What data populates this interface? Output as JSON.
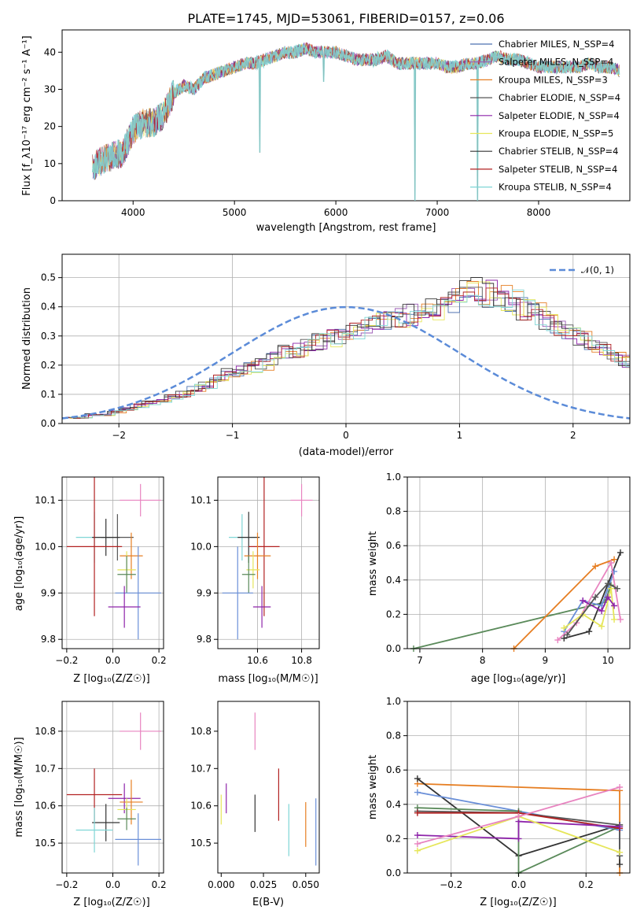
{
  "title": "PLATE=1745, MJD=53061, FIBERID=0157, z=0.06",
  "colors": {
    "Chabrier MILES": "#4c72b0",
    "Salpeter MILES": "#9b59b6",
    "Kroupa MILES": "#e67e22",
    "Chabrier ELODIE": "#555555",
    "Salpeter ELODIE": "#8e24aa",
    "Kroupa ELODIE": "#e6e65a",
    "Chabrier STELIB": "#333333",
    "Salpeter STELIB": "#b22222",
    "Kroupa STELIB": "#7fd6d6",
    "model_blue": "#6a8fd8",
    "model_green": "#5a8a5a",
    "model_pink": "#e884c0",
    "normal_curve": "#5b8bd8"
  },
  "panels": {
    "spectrum": {
      "xlabel": "wavelength [Angstrom, rest frame]",
      "ylabel": "Flux [f_λ10⁻¹⁷ erg cm⁻² s⁻¹ A⁻¹]",
      "xticks": [
        "4000",
        "5000",
        "6000",
        "7000",
        "8000"
      ],
      "yticks": [
        "0",
        "10",
        "20",
        "30",
        "40"
      ],
      "legend": [
        "Chabrier MILES, N_SSP=4",
        "Salpeter MILES, N_SSP=4",
        "Kroupa MILES, N_SSP=3",
        "Chabrier ELODIE, N_SSP=4",
        "Salpeter ELODIE, N_SSP=4",
        "Kroupa ELODIE, N_SSP=5",
        "Chabrier STELIB, N_SSP=4",
        "Salpeter STELIB, N_SSP=4",
        "Kroupa STELIB, N_SSP=4"
      ]
    },
    "residuals": {
      "xlabel": "(data-model)/error",
      "ylabel": "Normed distribution",
      "xticks": [
        "−2",
        "−1",
        "0",
        "1",
        "2"
      ],
      "yticks": [
        "0.0",
        "0.1",
        "0.2",
        "0.3",
        "0.4",
        "0.5"
      ],
      "legend": "𝒩(0, 1)"
    },
    "age_vs_z": {
      "xlabel": "Z [log₁₀(Z/Z☉)]",
      "ylabel": "age  [log₁₀(age/yr)]",
      "xticks": [
        "−0.2",
        "0.0",
        "0.2"
      ],
      "yticks": [
        "9.8",
        "9.9",
        "10.0",
        "10.1"
      ]
    },
    "age_vs_mass": {
      "xlabel": "mass [log₁₀(M/M☉)]",
      "xticks": [
        "10.6",
        "10.8"
      ],
      "yticks": [
        "9.8",
        "9.9",
        "10.0",
        "10.1"
      ]
    },
    "mw_vs_age": {
      "xlabel": "age  [log₁₀(age/yr)]",
      "ylabel": "mass weight",
      "xticks": [
        "7",
        "8",
        "9",
        "10"
      ],
      "yticks": [
        "0.0",
        "0.2",
        "0.4",
        "0.6",
        "0.8",
        "1.0"
      ]
    },
    "mass_vs_z": {
      "xlabel": "Z [log₁₀(Z/Z☉)]",
      "ylabel": "mass [log₁₀(M/M☉)]",
      "xticks": [
        "−0.2",
        "0.0",
        "0.2"
      ],
      "yticks": [
        "10.5",
        "10.6",
        "10.7",
        "10.8"
      ]
    },
    "mass_vs_ebv": {
      "xlabel": "E(B-V)",
      "xticks": [
        "0.000",
        "0.025",
        "0.050"
      ],
      "yticks": [
        "10.5",
        "10.6",
        "10.7",
        "10.8"
      ]
    },
    "mw_vs_z": {
      "xlabel": "Z [log₁₀(Z/Z☉)]",
      "ylabel": "mass weight",
      "xticks": [
        "−0.2",
        "0.0",
        "0.2"
      ],
      "yticks": [
        "0.0",
        "0.2",
        "0.4",
        "0.6",
        "0.8",
        "1.0"
      ]
    }
  },
  "chart_data": [
    {
      "type": "line",
      "title": "PLATE=1745, MJD=53061, FIBERID=0157, z=0.06",
      "xlabel": "wavelength [Angstrom, rest frame]",
      "ylabel": "Flux [f_λ10⁻¹⁷ erg cm⁻² s⁻¹ A⁻¹]",
      "xlim": [
        3300,
        8900
      ],
      "ylim": [
        0,
        46
      ],
      "grid": false,
      "legend_position": "upper right",
      "continuum": {
        "x": [
          3600,
          3700,
          3800,
          3900,
          4000,
          4100,
          4200,
          4300,
          4400,
          4500,
          4600,
          4700,
          4800,
          4900,
          5000,
          5100,
          5200,
          5300,
          5400,
          5500,
          5600,
          5700,
          5800,
          5900,
          6000,
          6100,
          6200,
          6300,
          6400,
          6500,
          6600,
          6700,
          6800,
          6900,
          7000,
          7100,
          7200,
          7300,
          7400,
          7500,
          7600,
          7700,
          7800,
          7900,
          8000,
          8100,
          8200,
          8300,
          8400,
          8500,
          8600,
          8700,
          8800
        ],
        "y": [
          9,
          11,
          12,
          13,
          19,
          21,
          21,
          23,
          29,
          31,
          30,
          33,
          34,
          35,
          36,
          37,
          37,
          38,
          39,
          40,
          40,
          41,
          40,
          40,
          40,
          39,
          38,
          38,
          38,
          39,
          37,
          37,
          37,
          37,
          37,
          36,
          36,
          37,
          37,
          38,
          39,
          38,
          38,
          37,
          36,
          36,
          36,
          36,
          36,
          37,
          36,
          36,
          35
        ]
      },
      "spikes": [
        {
          "x": 5250,
          "y": 13
        },
        {
          "x": 5880,
          "y": 32
        },
        {
          "x": 6780,
          "y": 0
        },
        {
          "x": 7400,
          "y": 0
        }
      ],
      "series": [
        {
          "name": "Chabrier MILES, N_SSP=4"
        },
        {
          "name": "Salpeter MILES, N_SSP=4"
        },
        {
          "name": "Kroupa MILES, N_SSP=3"
        },
        {
          "name": "Chabrier ELODIE, N_SSP=4"
        },
        {
          "name": "Salpeter ELODIE, N_SSP=4"
        },
        {
          "name": "Kroupa ELODIE, N_SSP=5"
        },
        {
          "name": "Chabrier STELIB, N_SSP=4"
        },
        {
          "name": "Salpeter STELIB, N_SSP=4"
        },
        {
          "name": "Kroupa STELIB, N_SSP=4"
        }
      ]
    },
    {
      "type": "bar",
      "xlabel": "(data-model)/error",
      "ylabel": "Normed distribution",
      "xlim": [
        -2.5,
        2.5
      ],
      "ylim": [
        0,
        0.58
      ],
      "grid": true,
      "bin_width": 0.1,
      "bin_start": -2.5,
      "base_hist": [
        0.02,
        0.02,
        0.03,
        0.03,
        0.04,
        0.05,
        0.06,
        0.07,
        0.08,
        0.09,
        0.1,
        0.12,
        0.13,
        0.15,
        0.17,
        0.18,
        0.19,
        0.2,
        0.22,
        0.24,
        0.25,
        0.27,
        0.28,
        0.29,
        0.3,
        0.31,
        0.33,
        0.34,
        0.35,
        0.36,
        0.37,
        0.38,
        0.39,
        0.4,
        0.42,
        0.44,
        0.45,
        0.44,
        0.43,
        0.41,
        0.39,
        0.37,
        0.35,
        0.33,
        0.31,
        0.29,
        0.27,
        0.25,
        0.23,
        0.21,
        0.19,
        0.17,
        0.15,
        0.13,
        0.12,
        0.1,
        0.09,
        0.08,
        0.07,
        0.06,
        0.05,
        0.05,
        0.04,
        0.03,
        0.03,
        0.02,
        0.02,
        0.02,
        0.02,
        0.01,
        0.01
      ],
      "series": [
        {
          "name": "𝒩(0, 1)",
          "function": "normal",
          "mu": 0,
          "sigma": 1
        }
      ]
    },
    {
      "type": "scatter",
      "xlabel": "Z [log₁₀(Z/Z☉)]",
      "ylabel": "age  [log₁₀(age/yr)]",
      "xlim": [
        -0.22,
        0.22
      ],
      "ylim": [
        9.78,
        10.15
      ],
      "grid": true,
      "points": [
        {
          "series": "model_pink",
          "x": 0.12,
          "y": 10.1,
          "xerr": 0.09,
          "yerr": 0.035
        },
        {
          "series": "Kroupa STELIB",
          "x": -0.08,
          "y": 10.02,
          "xerr": 0.08,
          "yerr": 0.055
        },
        {
          "series": "Chabrier ELODIE",
          "x": 0.02,
          "y": 10.02,
          "xerr": 0.07,
          "yerr": 0.05
        },
        {
          "series": "Chabrier STELIB",
          "x": -0.03,
          "y": 10.02,
          "xerr": 0.06,
          "yerr": 0.04
        },
        {
          "series": "Salpeter STELIB",
          "x": -0.08,
          "y": 10.0,
          "xerr": 0.12,
          "yerr": 0.15
        },
        {
          "series": "Kroupa MILES",
          "x": 0.08,
          "y": 9.98,
          "xerr": 0.05,
          "yerr": 0.05
        },
        {
          "series": "Kroupa ELODIE",
          "x": 0.06,
          "y": 9.95,
          "xerr": 0.04,
          "yerr": 0.04
        },
        {
          "series": "model_green",
          "x": 0.06,
          "y": 9.94,
          "xerr": 0.04,
          "yerr": 0.04
        },
        {
          "series": "model_blue",
          "x": 0.11,
          "y": 9.9,
          "xerr": 0.1,
          "yerr": 0.1
        },
        {
          "series": "Salpeter ELODIE",
          "x": 0.05,
          "y": 9.87,
          "xerr": 0.07,
          "yerr": 0.045
        }
      ]
    },
    {
      "type": "scatter",
      "xlabel": "mass [log₁₀(M/M☉)]",
      "xlim": [
        10.42,
        10.88
      ],
      "ylim": [
        9.78,
        10.15
      ],
      "grid": true,
      "points": [
        {
          "series": "model_pink",
          "x": 10.8,
          "y": 10.1,
          "xerr": 0.05,
          "yerr": 0.035
        },
        {
          "series": "Kroupa STELIB",
          "x": 10.53,
          "y": 10.02,
          "xerr": 0.06,
          "yerr": 0.05
        },
        {
          "series": "Chabrier STELIB",
          "x": 10.56,
          "y": 10.02,
          "xerr": 0.05,
          "yerr": 0.055
        },
        {
          "series": "Salpeter STELIB",
          "x": 10.63,
          "y": 10.0,
          "xerr": 0.07,
          "yerr": 0.15
        },
        {
          "series": "Kroupa MILES",
          "x": 10.6,
          "y": 9.98,
          "xerr": 0.06,
          "yerr": 0.05
        },
        {
          "series": "Kroupa ELODIE",
          "x": 10.58,
          "y": 9.95,
          "xerr": 0.03,
          "yerr": 0.04
        },
        {
          "series": "model_green",
          "x": 10.56,
          "y": 9.94,
          "xerr": 0.03,
          "yerr": 0.04
        },
        {
          "series": "model_blue",
          "x": 10.51,
          "y": 9.9,
          "xerr": 0.07,
          "yerr": 0.1
        },
        {
          "series": "Salpeter ELODIE",
          "x": 10.62,
          "y": 9.87,
          "xerr": 0.04,
          "yerr": 0.045
        }
      ]
    },
    {
      "type": "line",
      "xlabel": "age  [log₁₀(age/yr)]",
      "ylabel": "mass weight",
      "xlim": [
        6.8,
        10.35
      ],
      "ylim": [
        0,
        1
      ],
      "grid": true,
      "series": [
        {
          "name": "model_green",
          "x": [
            6.9,
            9.95,
            10.05
          ],
          "y": [
            0.0,
            0.27,
            0.37
          ]
        },
        {
          "name": "Kroupa MILES",
          "x": [
            8.5,
            9.8,
            10.1
          ],
          "y": [
            0.0,
            0.48,
            0.52
          ]
        },
        {
          "name": "Chabrier STELIB",
          "x": [
            9.3,
            9.7,
            10.2
          ],
          "y": [
            0.06,
            0.1,
            0.56
          ]
        },
        {
          "name": "model_blue",
          "x": [
            9.3,
            9.6,
            9.9,
            10.1
          ],
          "y": [
            0.1,
            0.28,
            0.25,
            0.45
          ]
        },
        {
          "name": "model_pink",
          "x": [
            9.2,
            9.5,
            10.05,
            10.2
          ],
          "y": [
            0.05,
            0.15,
            0.5,
            0.17
          ]
        },
        {
          "name": "Kroupa ELODIE",
          "x": [
            9.3,
            9.6,
            9.9,
            10.05,
            10.1
          ],
          "y": [
            0.12,
            0.2,
            0.13,
            0.35,
            0.17
          ]
        },
        {
          "name": "Salpeter ELODIE",
          "x": [
            9.6,
            9.9,
            10.0,
            10.1
          ],
          "y": [
            0.28,
            0.22,
            0.3,
            0.25
          ]
        },
        {
          "name": "Chabrier ELODIE",
          "x": [
            9.35,
            9.8,
            10.0,
            10.15
          ],
          "y": [
            0.08,
            0.3,
            0.38,
            0.35
          ]
        }
      ]
    },
    {
      "type": "scatter",
      "xlabel": "Z [log₁₀(Z/Z☉)]",
      "ylabel": "mass [log₁₀(M/M☉)]",
      "xlim": [
        -0.22,
        0.22
      ],
      "ylim": [
        10.42,
        10.88
      ],
      "grid": true,
      "points": [
        {
          "series": "model_pink",
          "x": 0.12,
          "y": 10.8,
          "xerr": 0.09,
          "yerr": 0.05
        },
        {
          "series": "Salpeter STELIB",
          "x": -0.08,
          "y": 10.63,
          "xerr": 0.12,
          "yerr": 0.07
        },
        {
          "series": "Salpeter ELODIE",
          "x": 0.05,
          "y": 10.62,
          "xerr": 0.07,
          "yerr": 0.04
        },
        {
          "series": "Kroupa MILES",
          "x": 0.08,
          "y": 10.61,
          "xerr": 0.05,
          "yerr": 0.06
        },
        {
          "series": "Kroupa ELODIE",
          "x": 0.06,
          "y": 10.59,
          "xerr": 0.04,
          "yerr": 0.03
        },
        {
          "series": "model_green",
          "x": 0.06,
          "y": 10.565,
          "xerr": 0.04,
          "yerr": 0.03
        },
        {
          "series": "Chabrier STELIB",
          "x": -0.03,
          "y": 10.555,
          "xerr": 0.06,
          "yerr": 0.05
        },
        {
          "series": "Kroupa STELIB",
          "x": -0.08,
          "y": 10.535,
          "xerr": 0.08,
          "yerr": 0.06
        },
        {
          "series": "model_blue",
          "x": 0.11,
          "y": 10.51,
          "xerr": 0.1,
          "yerr": 0.07
        }
      ]
    },
    {
      "type": "scatter",
      "xlabel": "E(B-V)",
      "xlim": [
        -0.002,
        0.058
      ],
      "ylim": [
        10.42,
        10.88
      ],
      "grid": false,
      "points": [
        {
          "series": "Kroupa ELODIE",
          "x": 0.0,
          "y": 10.59,
          "yerr": 0.04
        },
        {
          "series": "Salpeter ELODIE",
          "x": 0.003,
          "y": 10.62,
          "yerr": 0.04
        },
        {
          "series": "model_pink",
          "x": 0.02,
          "y": 10.8,
          "yerr": 0.05
        },
        {
          "series": "Chabrier STELIB",
          "x": 0.02,
          "y": 10.58,
          "yerr": 0.05
        },
        {
          "series": "Salpeter STELIB",
          "x": 0.034,
          "y": 10.63,
          "yerr": 0.07
        },
        {
          "series": "Kroupa STELIB",
          "x": 0.04,
          "y": 10.535,
          "yerr": 0.07
        },
        {
          "series": "Kroupa MILES",
          "x": 0.05,
          "y": 10.55,
          "yerr": 0.06
        },
        {
          "series": "model_blue",
          "x": 0.056,
          "y": 10.53,
          "yerr": 0.09
        }
      ]
    },
    {
      "type": "line",
      "xlabel": "Z [log₁₀(Z/Z☉)]",
      "ylabel": "mass weight",
      "xlim": [
        -0.33,
        0.33
      ],
      "ylim": [
        0,
        1
      ],
      "grid": true,
      "series": [
        {
          "name": "Kroupa MILES",
          "x": [
            -0.3,
            0.3,
            0.3
          ],
          "y": [
            0.52,
            0.48,
            0.0
          ]
        },
        {
          "name": "Chabrier STELIB",
          "x": [
            -0.3,
            0.0,
            0.3,
            0.3
          ],
          "y": [
            0.55,
            0.1,
            0.28,
            0.05
          ]
        },
        {
          "name": "model_blue",
          "x": [
            -0.3,
            0.0,
            0.3,
            0.3
          ],
          "y": [
            0.47,
            0.36,
            0.25,
            0.1
          ]
        },
        {
          "name": "model_green",
          "x": [
            -0.3,
            0.0,
            0.0,
            0.3
          ],
          "y": [
            0.38,
            0.36,
            0.0,
            0.27
          ]
        },
        {
          "name": "Chabrier ELODIE",
          "x": [
            -0.3,
            0.0,
            0.3,
            0.3
          ],
          "y": [
            0.36,
            0.35,
            0.28,
            0.1
          ]
        },
        {
          "name": "Salpeter STELIB",
          "x": [
            -0.3,
            0.0,
            0.3
          ],
          "y": [
            0.35,
            0.35,
            0.26
          ]
        },
        {
          "name": "Salpeter ELODIE",
          "x": [
            -0.3,
            0.0,
            0.0,
            0.3
          ],
          "y": [
            0.22,
            0.2,
            0.3,
            0.27
          ]
        },
        {
          "name": "Kroupa ELODIE",
          "x": [
            -0.3,
            0.0,
            0.3
          ],
          "y": [
            0.13,
            0.33,
            0.12
          ]
        },
        {
          "name": "model_pink",
          "x": [
            -0.3,
            0.0,
            0.3
          ],
          "y": [
            0.17,
            0.33,
            0.5
          ]
        }
      ]
    }
  ]
}
